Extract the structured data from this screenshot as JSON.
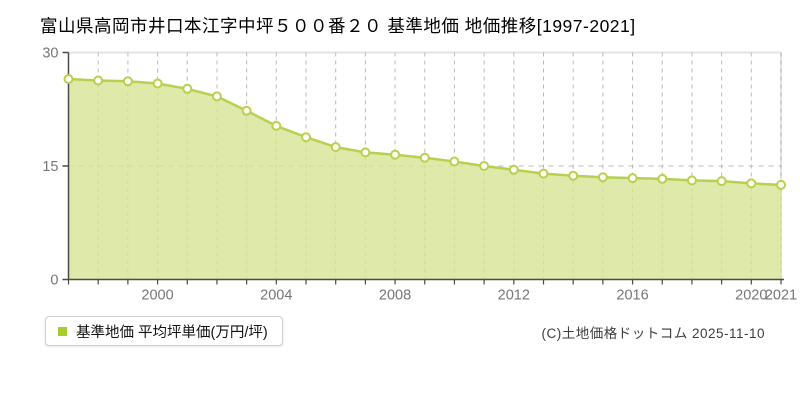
{
  "title": "富山県高岡市井口本江字中坪５００番２０ 基準地価 地価推移[1997-2021]",
  "legend": {
    "label": "基準地価 平均坪単価(万円/坪)"
  },
  "copyright": "(C)土地価格ドットコム 2025-11-10",
  "chart_data": {
    "type": "area",
    "title": "富山県高岡市井口本江字中坪５００番２０ 基準地価 地価推移[1997-2021]",
    "x": [
      1997,
      1998,
      1999,
      2000,
      2001,
      2002,
      2003,
      2004,
      2005,
      2006,
      2007,
      2008,
      2009,
      2010,
      2011,
      2012,
      2013,
      2014,
      2015,
      2016,
      2017,
      2018,
      2019,
      2020,
      2021
    ],
    "series": [
      {
        "name": "基準地価 平均坪単価(万円/坪)",
        "values": [
          26.5,
          26.3,
          26.2,
          25.9,
          25.2,
          24.2,
          22.3,
          20.3,
          18.8,
          17.5,
          16.8,
          16.5,
          16.1,
          15.6,
          15.0,
          14.5,
          14.0,
          13.7,
          13.5,
          13.4,
          13.3,
          13.1,
          13.0,
          12.7,
          12.5
        ]
      }
    ],
    "xlabel": "",
    "ylabel": "万円/坪",
    "ylim": [
      0,
      30
    ],
    "yticks": [
      0,
      15,
      30
    ],
    "xticks_labeled": [
      2000,
      2004,
      2008,
      2012,
      2016,
      2020,
      2021
    ],
    "grid": "dashed",
    "legend_position": "bottom-left",
    "colors": {
      "area_fill": "#d7e494",
      "line": "#b6d14f",
      "marker_fill": "#fffdf4",
      "grid": "#b9b9b9",
      "axis": "#4a4a4a",
      "tick_label": "#767676",
      "border": "#e3e3e3",
      "legend_swatch": "#a5cd2e"
    }
  }
}
